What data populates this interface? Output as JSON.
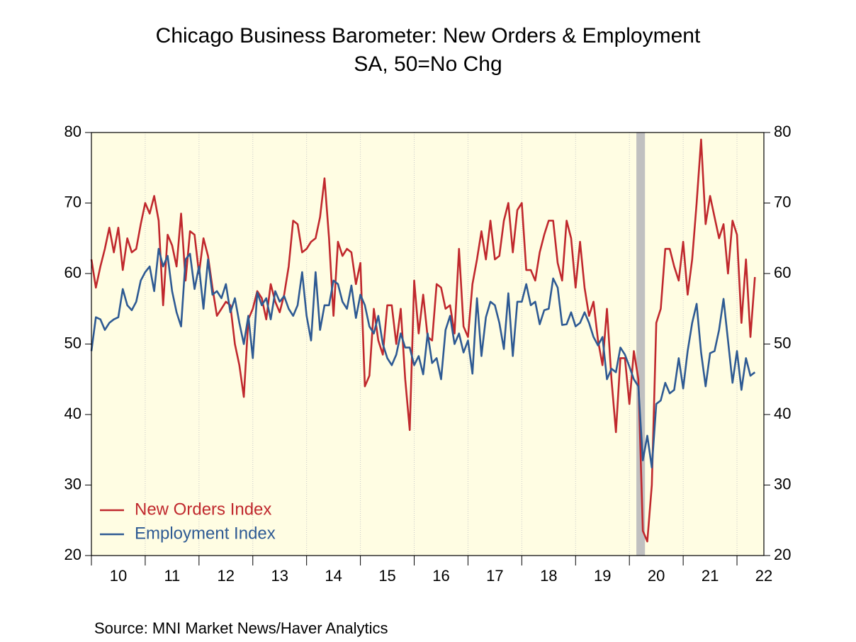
{
  "chart_data": {
    "type": "line",
    "title": "Chicago Business Barometer: New Orders & Employment",
    "subtitle": "SA, 50=No Chg",
    "source": "Source:  MNI Market News/Haver Analytics",
    "x": [
      2010,
      2010.083,
      2010.167,
      2010.25,
      2010.333,
      2010.417,
      2010.5,
      2010.583,
      2010.667,
      2010.75,
      2010.833,
      2010.917,
      2011,
      2011.083,
      2011.167,
      2011.25,
      2011.333,
      2011.417,
      2011.5,
      2011.583,
      2011.667,
      2011.75,
      2011.833,
      2011.917,
      2012,
      2012.083,
      2012.167,
      2012.25,
      2012.333,
      2012.417,
      2012.5,
      2012.583,
      2012.667,
      2012.75,
      2012.833,
      2012.917,
      2013,
      2013.083,
      2013.167,
      2013.25,
      2013.333,
      2013.417,
      2013.5,
      2013.583,
      2013.667,
      2013.75,
      2013.833,
      2013.917,
      2014,
      2014.083,
      2014.167,
      2014.25,
      2014.333,
      2014.417,
      2014.5,
      2014.583,
      2014.667,
      2014.75,
      2014.833,
      2014.917,
      2015,
      2015.083,
      2015.167,
      2015.25,
      2015.333,
      2015.417,
      2015.5,
      2015.583,
      2015.667,
      2015.75,
      2015.833,
      2015.917,
      2016,
      2016.083,
      2016.167,
      2016.25,
      2016.333,
      2016.417,
      2016.5,
      2016.583,
      2016.667,
      2016.75,
      2016.833,
      2016.917,
      2017,
      2017.083,
      2017.167,
      2017.25,
      2017.333,
      2017.417,
      2017.5,
      2017.583,
      2017.667,
      2017.75,
      2017.833,
      2017.917,
      2018,
      2018.083,
      2018.167,
      2018.25,
      2018.333,
      2018.417,
      2018.5,
      2018.583,
      2018.667,
      2018.75,
      2018.833,
      2018.917,
      2019,
      2019.083,
      2019.167,
      2019.25,
      2019.333,
      2019.417,
      2019.5,
      2019.583,
      2019.667,
      2019.75,
      2019.833,
      2019.917,
      2020,
      2020.083,
      2020.167,
      2020.25,
      2020.333,
      2020.417,
      2020.5,
      2020.583,
      2020.667,
      2020.75,
      2020.833,
      2020.917,
      2021,
      2021.083,
      2021.167,
      2021.25,
      2021.333,
      2021.417,
      2021.5,
      2021.583,
      2021.667,
      2021.75,
      2021.833,
      2021.917,
      2022,
      2022.083,
      2022.167,
      2022.25,
      2022.333
    ],
    "series": [
      {
        "name": "New Orders Index",
        "color": "#c0282d",
        "values": [
          62,
          58,
          61,
          63.5,
          66.5,
          63,
          66.5,
          60.5,
          65,
          63,
          63.5,
          67,
          70,
          68.5,
          71,
          67.5,
          55.5,
          65.5,
          64,
          61,
          68.5,
          59,
          66,
          65.5,
          60,
          65,
          62.5,
          58,
          54,
          55,
          56,
          55.5,
          50,
          47,
          42.5,
          53.5,
          55,
          57.5,
          56.5,
          53.5,
          58.5,
          56,
          54.5,
          57,
          61,
          67.5,
          67,
          63,
          63.5,
          64.5,
          65,
          68,
          73.5,
          65,
          54,
          64.5,
          62.5,
          63.5,
          63,
          58.5,
          61.5,
          44,
          45.5,
          55,
          50.5,
          48.5,
          55.5,
          55.5,
          50,
          55,
          45,
          37.8,
          59,
          51.5,
          57,
          51,
          50.5,
          58.5,
          58,
          55,
          55.5,
          51.5,
          63.5,
          52.5,
          51,
          58.5,
          62,
          66,
          62,
          67.5,
          62,
          62.5,
          67.5,
          70,
          63,
          69,
          70,
          60.5,
          60.5,
          59,
          63,
          65.5,
          67.5,
          67.5,
          61.5,
          59,
          67.5,
          65,
          58,
          64.5,
          58,
          54,
          56,
          50.5,
          47,
          55,
          45,
          37.5,
          48,
          48,
          41.5,
          49,
          45,
          23.5,
          22,
          30,
          53,
          55,
          63.5,
          63.5,
          61,
          59,
          64.5,
          57,
          62,
          70,
          79,
          67,
          71,
          68,
          65,
          67,
          60,
          67.5,
          65.5,
          53,
          62,
          51,
          59.5
        ]
      },
      {
        "name": "Employment Index",
        "color": "#2e5a93",
        "values": [
          49,
          53.8,
          53.5,
          52,
          53,
          53.5,
          53.8,
          57.8,
          55.5,
          54.8,
          56,
          59,
          60.2,
          61,
          57.5,
          63.5,
          61,
          62.5,
          57.5,
          54.5,
          52.5,
          62,
          62.8,
          57.8,
          61,
          55,
          62,
          57,
          57.5,
          56.5,
          58.5,
          54.5,
          56.5,
          53,
          50,
          54,
          48,
          57.3,
          55.5,
          56.5,
          53.5,
          57.5,
          56,
          56.8,
          55,
          54,
          55.5,
          60.2,
          54,
          50.5,
          60.2,
          52,
          55.5,
          55.5,
          59,
          58.5,
          56,
          55,
          58.3,
          53.7,
          57,
          55.5,
          52.5,
          51.5,
          54,
          50,
          48,
          47,
          48.5,
          51.5,
          49.5,
          49.5,
          47,
          48.3,
          45.7,
          51.5,
          47.3,
          48,
          45,
          52,
          54,
          50,
          51.5,
          48.8,
          50.5,
          45.8,
          56.5,
          48.3,
          53.8,
          56,
          55.5,
          53,
          49.3,
          57.2,
          48.3,
          56,
          56,
          58.5,
          55.5,
          56,
          52.8,
          54.8,
          55,
          59.3,
          58,
          52.7,
          52.8,
          54.5,
          52.5,
          53,
          54.5,
          53,
          51,
          49.8,
          51,
          45,
          46.5,
          46,
          49.5,
          48.5,
          46.8,
          45,
          44,
          33.5,
          37,
          32.5,
          41.5,
          42,
          44.5,
          43,
          43.5,
          48,
          43.7,
          49,
          53,
          55.7,
          48.8,
          44,
          48.7,
          49,
          52,
          56.4,
          50.5,
          44.5,
          49,
          43.5,
          48,
          45.5,
          46
        ]
      }
    ],
    "recession": [
      2020.13,
      2020.29
    ],
    "xlim": [
      2010,
      2022.5
    ],
    "xticks": [
      {
        "value": 2010.5,
        "label": "10"
      },
      {
        "value": 2011.5,
        "label": "11"
      },
      {
        "value": 2012.5,
        "label": "12"
      },
      {
        "value": 2013.5,
        "label": "13"
      },
      {
        "value": 2014.5,
        "label": "14"
      },
      {
        "value": 2015.5,
        "label": "15"
      },
      {
        "value": 2016.5,
        "label": "16"
      },
      {
        "value": 2017.5,
        "label": "17"
      },
      {
        "value": 2018.5,
        "label": "18"
      },
      {
        "value": 2019.5,
        "label": "19"
      },
      {
        "value": 2020.5,
        "label": "20"
      },
      {
        "value": 2021.5,
        "label": "21"
      },
      {
        "value": 2022.5,
        "label": "22"
      }
    ],
    "ylim": [
      20,
      80
    ],
    "yticks": [
      20,
      30,
      40,
      50,
      60,
      70,
      80
    ],
    "y2lim": [
      20,
      80
    ],
    "y2ticks": [
      20,
      30,
      40,
      50,
      60,
      70,
      80
    ],
    "grid": true,
    "legend": "lower left",
    "background": "#fffde3"
  }
}
